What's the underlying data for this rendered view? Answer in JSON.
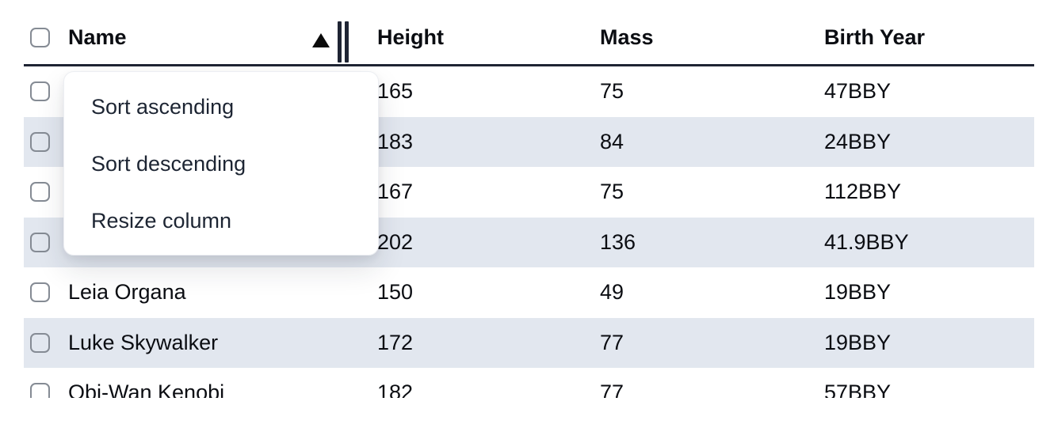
{
  "colors": {
    "header_border": "#1e2433",
    "row_stripe": "#e2e7ef",
    "cell_text": "#0b0d12",
    "menu_text": "#1d2533",
    "checkbox_border": "#858b94",
    "sort_icon": "#0a0a0a"
  },
  "table": {
    "sort": {
      "column": "Name",
      "direction": "ascending"
    },
    "select_all_checked": false,
    "columns": [
      {
        "label": "Name"
      },
      {
        "label": "Height"
      },
      {
        "label": "Mass"
      },
      {
        "label": "Birth Year"
      }
    ],
    "rows": [
      {
        "checked": false,
        "name": "",
        "height": "165",
        "mass": "75",
        "birth_year": "47BBY"
      },
      {
        "checked": false,
        "name": "",
        "height": "183",
        "mass": "84",
        "birth_year": "24BBY"
      },
      {
        "checked": false,
        "name": "",
        "height": "167",
        "mass": "75",
        "birth_year": "112BBY"
      },
      {
        "checked": false,
        "name": "",
        "height": "202",
        "mass": "136",
        "birth_year": "41.9BBY"
      },
      {
        "checked": false,
        "name": "Leia Organa",
        "height": "150",
        "mass": "49",
        "birth_year": "19BBY"
      },
      {
        "checked": false,
        "name": "Luke Skywalker",
        "height": "172",
        "mass": "77",
        "birth_year": "19BBY"
      },
      {
        "checked": false,
        "name": "Obi-Wan Kenobi",
        "height": "182",
        "mass": "77",
        "birth_year": "57BBY"
      }
    ]
  },
  "context_menu": {
    "items": [
      {
        "label": "Sort ascending"
      },
      {
        "label": "Sort descending"
      },
      {
        "label": "Resize column"
      }
    ]
  }
}
